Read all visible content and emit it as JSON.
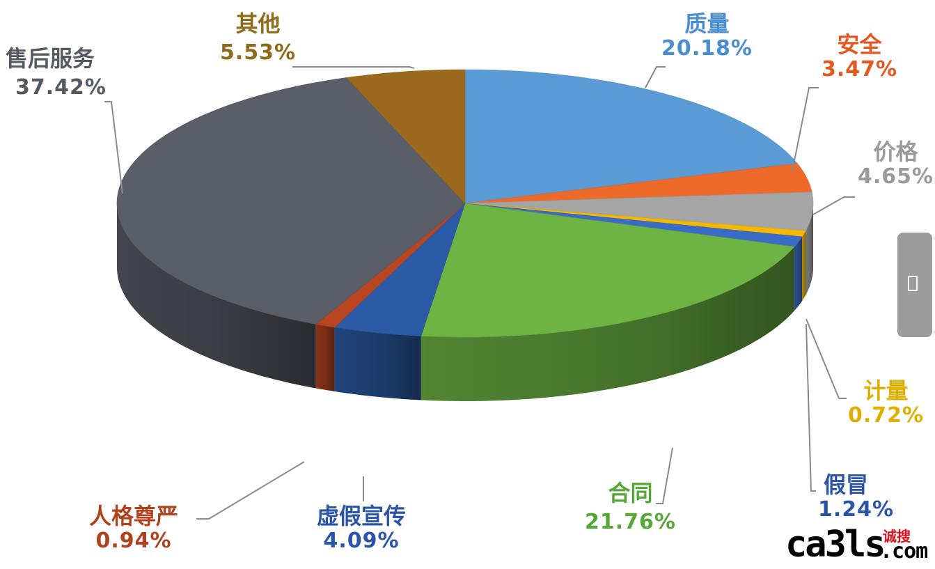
{
  "chart_data": {
    "type": "pie",
    "title": "",
    "style": "3d-tilted",
    "start": "12 o'clock, clockwise",
    "series": [
      {
        "name": "质量",
        "value": 20.18,
        "label": "20.18%",
        "color": "#5b9bd5"
      },
      {
        "name": "安全",
        "value": 3.47,
        "label": "3.47%",
        "color": "#ed6a2b"
      },
      {
        "name": "价格",
        "value": 4.65,
        "label": "4.65%",
        "color": "#a5a5a5"
      },
      {
        "name": "计量",
        "value": 0.72,
        "label": "0.72%",
        "color": "#f5b800"
      },
      {
        "name": "假冒",
        "value": 1.24,
        "label": "1.24%",
        "color": "#3a6cc5"
      },
      {
        "name": "合同",
        "value": 21.76,
        "label": "21.76%",
        "color": "#6db444"
      },
      {
        "name": "虚假宣传",
        "value": 4.09,
        "label": "4.09%",
        "color": "#2b5ba6"
      },
      {
        "name": "人格尊严",
        "value": 0.94,
        "label": "0.94%",
        "color": "#b8451f"
      },
      {
        "name": "售后服务",
        "value": 37.42,
        "label": "37.42%",
        "color": "#5a5e68"
      },
      {
        "name": "其他",
        "value": 5.53,
        "label": "5.53%",
        "color": "#9c6a1e"
      }
    ],
    "label_colors": {
      "质量": "#4a8ed2",
      "安全": "#e4571e",
      "价格": "#9a9a9a",
      "计量": "#e0b000",
      "假冒": "#2c55a8",
      "合同": "#55a838",
      "虚假宣传": "#2a55a8",
      "人格尊严": "#b0421e",
      "售后服务": "#555960",
      "其他": "#8f6a18"
    }
  },
  "side_handle": {
    "icon": "page-icon"
  },
  "watermark": {
    "text": "ca3ls",
    "domain": ".com",
    "cn": "诚搜"
  }
}
